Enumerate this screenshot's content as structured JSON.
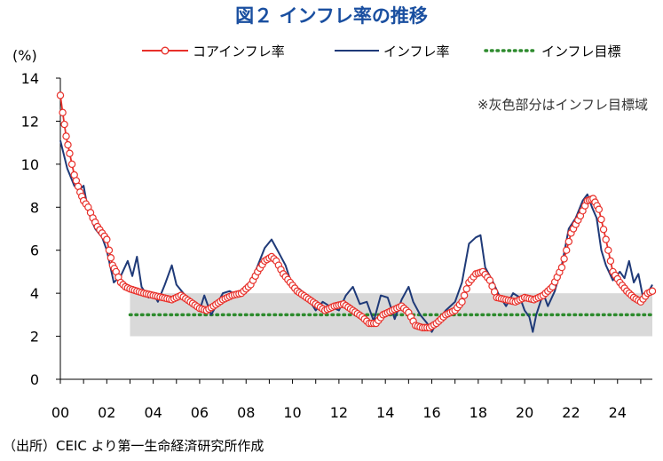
{
  "chart_data": {
    "type": "line",
    "title": "図２ インフレ率の推移",
    "y_unit": "(%)",
    "ylim": [
      0,
      14
    ],
    "yticks": [
      "0",
      "2",
      "4",
      "6",
      "8",
      "10",
      "12",
      "14"
    ],
    "xlim": [
      2000,
      2025.5
    ],
    "xticks": [
      {
        "x": 2000,
        "label": "00"
      },
      {
        "x": 2002,
        "label": "02"
      },
      {
        "x": 2004,
        "label": "04"
      },
      {
        "x": 2006,
        "label": "06"
      },
      {
        "x": 2008,
        "label": "08"
      },
      {
        "x": 2010,
        "label": "10"
      },
      {
        "x": 2012,
        "label": "12"
      },
      {
        "x": 2014,
        "label": "14"
      },
      {
        "x": 2016,
        "label": "16"
      },
      {
        "x": 2018,
        "label": "18"
      },
      {
        "x": 2020,
        "label": "20"
      },
      {
        "x": 2022,
        "label": "22"
      },
      {
        "x": 2024,
        "label": "24"
      }
    ],
    "grid": false,
    "legend_position": "top-right",
    "target_band": {
      "x_start": 2003,
      "x_end": 2025.5,
      "y_low": 2,
      "y_high": 4
    },
    "band_note": "※灰色部分はインフレ目標域",
    "series": [
      {
        "name": "コアインフレ率",
        "color": "#e8302a",
        "style": "line-circle",
        "points": [
          [
            2000.0,
            13.2
          ],
          [
            2000.1,
            12.4
          ],
          [
            2000.25,
            11.3
          ],
          [
            2000.4,
            10.5
          ],
          [
            2000.6,
            9.5
          ],
          [
            2000.85,
            8.7
          ],
          [
            2001.0,
            8.3
          ],
          [
            2001.2,
            8.0
          ],
          [
            2001.4,
            7.5
          ],
          [
            2001.6,
            7.1
          ],
          [
            2001.8,
            6.8
          ],
          [
            2002.0,
            6.5
          ],
          [
            2002.1,
            6.0
          ],
          [
            2002.25,
            5.3
          ],
          [
            2002.4,
            5.0
          ],
          [
            2002.6,
            4.5
          ],
          [
            2002.8,
            4.3
          ],
          [
            2003.0,
            4.2
          ],
          [
            2003.3,
            4.1
          ],
          [
            2003.6,
            4.0
          ],
          [
            2004.0,
            3.9
          ],
          [
            2004.4,
            3.8
          ],
          [
            2004.8,
            3.7
          ],
          [
            2005.2,
            3.9
          ],
          [
            2005.6,
            3.6
          ],
          [
            2006.0,
            3.3
          ],
          [
            2006.3,
            3.2
          ],
          [
            2006.6,
            3.4
          ],
          [
            2007.0,
            3.7
          ],
          [
            2007.4,
            3.9
          ],
          [
            2007.8,
            4.0
          ],
          [
            2008.2,
            4.4
          ],
          [
            2008.5,
            5.0
          ],
          [
            2008.8,
            5.5
          ],
          [
            2009.1,
            5.7
          ],
          [
            2009.3,
            5.5
          ],
          [
            2009.6,
            4.9
          ],
          [
            2009.9,
            4.5
          ],
          [
            2010.2,
            4.1
          ],
          [
            2010.6,
            3.8
          ],
          [
            2011.0,
            3.5
          ],
          [
            2011.4,
            3.2
          ],
          [
            2011.8,
            3.4
          ],
          [
            2012.2,
            3.5
          ],
          [
            2012.6,
            3.2
          ],
          [
            2013.0,
            2.9
          ],
          [
            2013.3,
            2.6
          ],
          [
            2013.6,
            2.6
          ],
          [
            2013.9,
            3.0
          ],
          [
            2014.3,
            3.2
          ],
          [
            2014.7,
            3.4
          ],
          [
            2015.0,
            3.1
          ],
          [
            2015.3,
            2.5
          ],
          [
            2015.6,
            2.4
          ],
          [
            2015.9,
            2.4
          ],
          [
            2016.2,
            2.6
          ],
          [
            2016.6,
            3.0
          ],
          [
            2017.0,
            3.2
          ],
          [
            2017.3,
            3.6
          ],
          [
            2017.6,
            4.5
          ],
          [
            2017.9,
            4.9
          ],
          [
            2018.2,
            5.0
          ],
          [
            2018.5,
            4.6
          ],
          [
            2018.8,
            3.8
          ],
          [
            2019.2,
            3.7
          ],
          [
            2019.6,
            3.6
          ],
          [
            2020.0,
            3.8
          ],
          [
            2020.4,
            3.7
          ],
          [
            2020.8,
            3.9
          ],
          [
            2021.2,
            4.3
          ],
          [
            2021.6,
            5.2
          ],
          [
            2022.0,
            6.8
          ],
          [
            2022.4,
            7.6
          ],
          [
            2022.7,
            8.3
          ],
          [
            2022.95,
            8.4
          ],
          [
            2023.2,
            7.9
          ],
          [
            2023.5,
            6.5
          ],
          [
            2023.8,
            5.0
          ],
          [
            2024.1,
            4.5
          ],
          [
            2024.4,
            4.1
          ],
          [
            2024.7,
            3.8
          ],
          [
            2025.0,
            3.6
          ],
          [
            2025.3,
            4.0
          ],
          [
            2025.5,
            4.1
          ]
        ]
      },
      {
        "name": "インフレ率",
        "color": "#1f3a78",
        "style": "line",
        "points": [
          [
            2000.0,
            11.1
          ],
          [
            2000.3,
            9.8
          ],
          [
            2000.6,
            9.0
          ],
          [
            2000.8,
            8.8
          ],
          [
            2001.0,
            9.0
          ],
          [
            2001.2,
            7.8
          ],
          [
            2001.5,
            7.0
          ],
          [
            2001.8,
            6.6
          ],
          [
            2002.0,
            6.0
          ],
          [
            2002.3,
            4.5
          ],
          [
            2002.6,
            4.8
          ],
          [
            2002.9,
            5.5
          ],
          [
            2003.1,
            4.8
          ],
          [
            2003.3,
            5.7
          ],
          [
            2003.5,
            4.3
          ],
          [
            2003.8,
            3.8
          ],
          [
            2004.0,
            4.0
          ],
          [
            2004.2,
            3.6
          ],
          [
            2004.5,
            4.4
          ],
          [
            2004.8,
            5.3
          ],
          [
            2005.0,
            4.4
          ],
          [
            2005.3,
            4.0
          ],
          [
            2005.6,
            3.5
          ],
          [
            2006.0,
            3.2
          ],
          [
            2006.2,
            3.9
          ],
          [
            2006.5,
            3.0
          ],
          [
            2006.7,
            3.4
          ],
          [
            2007.0,
            4.0
          ],
          [
            2007.3,
            4.1
          ],
          [
            2007.6,
            3.9
          ],
          [
            2008.0,
            4.2
          ],
          [
            2008.4,
            5.0
          ],
          [
            2008.8,
            6.1
          ],
          [
            2009.1,
            6.5
          ],
          [
            2009.4,
            5.9
          ],
          [
            2009.7,
            5.3
          ],
          [
            2010.0,
            4.3
          ],
          [
            2010.3,
            4.2
          ],
          [
            2010.6,
            3.9
          ],
          [
            2011.0,
            3.2
          ],
          [
            2011.3,
            3.6
          ],
          [
            2011.6,
            3.4
          ],
          [
            2012.0,
            3.2
          ],
          [
            2012.3,
            3.9
          ],
          [
            2012.6,
            4.3
          ],
          [
            2012.9,
            3.5
          ],
          [
            2013.2,
            3.6
          ],
          [
            2013.5,
            2.7
          ],
          [
            2013.8,
            3.9
          ],
          [
            2014.1,
            3.8
          ],
          [
            2014.4,
            2.8
          ],
          [
            2014.7,
            3.7
          ],
          [
            2015.0,
            4.3
          ],
          [
            2015.2,
            3.6
          ],
          [
            2015.5,
            3.0
          ],
          [
            2015.8,
            2.6
          ],
          [
            2016.0,
            2.2
          ],
          [
            2016.3,
            2.8
          ],
          [
            2016.6,
            3.2
          ],
          [
            2017.0,
            3.6
          ],
          [
            2017.3,
            4.5
          ],
          [
            2017.6,
            6.3
          ],
          [
            2017.9,
            6.6
          ],
          [
            2018.1,
            6.7
          ],
          [
            2018.3,
            5.2
          ],
          [
            2018.6,
            4.6
          ],
          [
            2018.9,
            3.9
          ],
          [
            2019.2,
            3.4
          ],
          [
            2019.5,
            4.0
          ],
          [
            2019.8,
            3.8
          ],
          [
            2020.0,
            3.2
          ],
          [
            2020.2,
            2.9
          ],
          [
            2020.35,
            2.2
          ],
          [
            2020.5,
            3.0
          ],
          [
            2020.8,
            4.0
          ],
          [
            2021.0,
            3.4
          ],
          [
            2021.3,
            4.1
          ],
          [
            2021.6,
            5.3
          ],
          [
            2021.9,
            7.0
          ],
          [
            2022.2,
            7.5
          ],
          [
            2022.5,
            8.3
          ],
          [
            2022.7,
            8.6
          ],
          [
            2022.9,
            8.0
          ],
          [
            2023.1,
            7.5
          ],
          [
            2023.3,
            6.0
          ],
          [
            2023.5,
            5.3
          ],
          [
            2023.8,
            4.6
          ],
          [
            2024.1,
            5.0
          ],
          [
            2024.3,
            4.7
          ],
          [
            2024.5,
            5.5
          ],
          [
            2024.7,
            4.5
          ],
          [
            2024.9,
            4.9
          ],
          [
            2025.1,
            3.8
          ],
          [
            2025.3,
            4.0
          ],
          [
            2025.5,
            4.4
          ]
        ]
      },
      {
        "name": "インフレ目標",
        "color": "#2e8b2e",
        "style": "dotted",
        "points": [
          [
            2003,
            3.0
          ],
          [
            2025.5,
            3.0
          ]
        ]
      }
    ]
  },
  "footer": {
    "source": "（出所）CEIC より第一生命経済研究所作成"
  }
}
